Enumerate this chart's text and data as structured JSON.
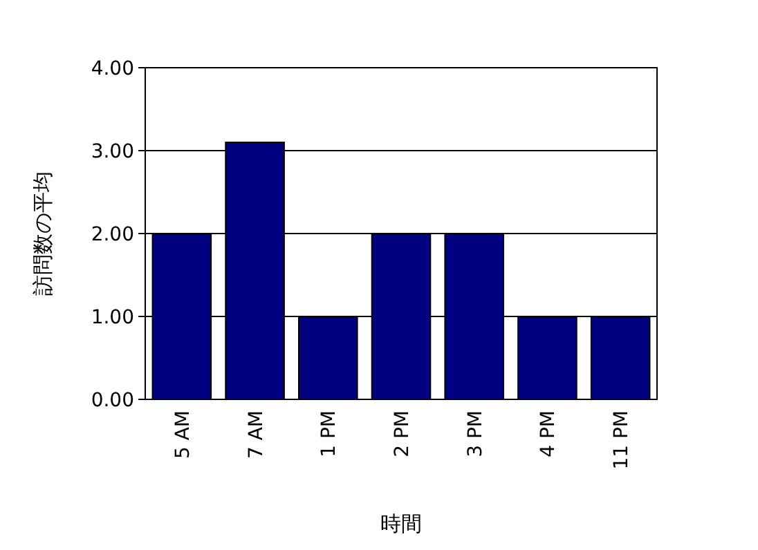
{
  "chart_data": {
    "type": "bar",
    "xlabel": "時間",
    "ylabel": "訪問数の平均",
    "categories": [
      "5 AM",
      "7 AM",
      "1 PM",
      "2 PM",
      "3 PM",
      "4 PM",
      "11 PM"
    ],
    "values": [
      2,
      3.1,
      1,
      2,
      2,
      1,
      1
    ],
    "color": "#000080",
    "ylim": [
      0,
      4
    ],
    "yticks": [
      {
        "value": 0,
        "label": "0.00"
      },
      {
        "value": 1,
        "label": "1.00"
      },
      {
        "value": 2,
        "label": "2.00"
      },
      {
        "value": 3,
        "label": "3.00"
      },
      {
        "value": 4,
        "label": "4.00"
      }
    ],
    "grid": "y"
  }
}
